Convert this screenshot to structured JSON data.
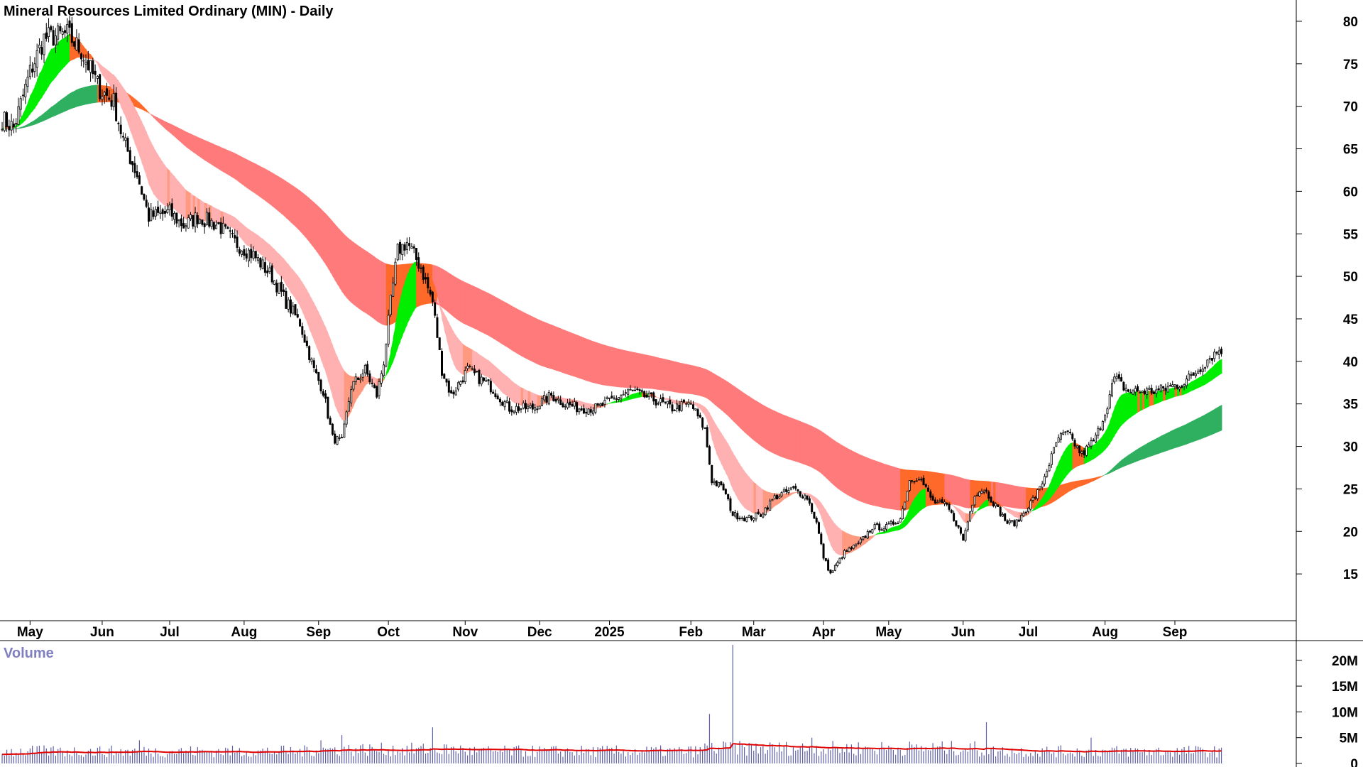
{
  "chart_data": {
    "type": "candlestick",
    "title": "Mineral Resources Limited Ordinary (MIN) - Daily",
    "volume_label": "Volume",
    "price_axis": {
      "ticks": [
        15,
        20,
        25,
        30,
        35,
        40,
        45,
        50,
        55,
        60,
        65,
        70,
        75,
        80
      ],
      "range": [
        10.5,
        81.5
      ]
    },
    "volume_axis": {
      "ticks": [
        0,
        5,
        10,
        15,
        20
      ],
      "tick_labels": [
        "0",
        "5M",
        "10M",
        "15M",
        "20M"
      ],
      "unit": "M",
      "range": [
        0,
        23
      ]
    },
    "x_ticks": [
      {
        "label": "May",
        "day": 12
      },
      {
        "label": "Jun",
        "day": 43
      },
      {
        "label": "Jul",
        "day": 72
      },
      {
        "label": "Aug",
        "day": 104
      },
      {
        "label": "Sep",
        "day": 136
      },
      {
        "label": "Oct",
        "day": 166
      },
      {
        "label": "Nov",
        "day": 199
      },
      {
        "label": "Dec",
        "day": 231
      },
      {
        "label": "2025",
        "day": 261
      },
      {
        "label": "Feb",
        "day": 296
      },
      {
        "label": "Mar",
        "day": 323
      },
      {
        "label": "Apr",
        "day": 353
      },
      {
        "label": "May",
        "day": 381
      },
      {
        "label": "Jun",
        "day": 413
      },
      {
        "label": "Jul",
        "day": 441
      },
      {
        "label": "Aug",
        "day": 474
      },
      {
        "label": "Sep",
        "day": 504
      }
    ],
    "day_range": [
      0,
      540
    ],
    "close_anchors": [
      [
        0,
        68.5
      ],
      [
        5,
        67.5
      ],
      [
        12,
        74
      ],
      [
        18,
        78
      ],
      [
        28,
        78.5
      ],
      [
        34,
        76.5
      ],
      [
        42,
        72
      ],
      [
        48,
        70.5
      ],
      [
        52,
        66
      ],
      [
        58,
        62
      ],
      [
        63,
        57
      ],
      [
        72,
        57.5
      ],
      [
        78,
        56
      ],
      [
        84,
        57
      ],
      [
        93,
        56
      ],
      [
        100,
        54
      ],
      [
        108,
        52.5
      ],
      [
        116,
        50
      ],
      [
        122,
        47
      ],
      [
        128,
        44.5
      ],
      [
        134,
        39
      ],
      [
        138,
        36.5
      ],
      [
        142,
        31
      ],
      [
        146,
        30.5
      ],
      [
        150,
        37
      ],
      [
        156,
        39
      ],
      [
        161,
        36
      ],
      [
        164,
        40
      ],
      [
        167,
        47
      ],
      [
        170,
        53
      ],
      [
        174,
        54
      ],
      [
        180,
        51
      ],
      [
        185,
        47
      ],
      [
        189,
        39
      ],
      [
        193,
        36
      ],
      [
        200,
        39
      ],
      [
        210,
        37
      ],
      [
        218,
        34.5
      ],
      [
        228,
        34.5
      ],
      [
        236,
        36
      ],
      [
        242,
        35
      ],
      [
        248,
        34.5
      ],
      [
        256,
        34.5
      ],
      [
        262,
        35.5
      ],
      [
        270,
        36.5
      ],
      [
        280,
        35.5
      ],
      [
        288,
        34.5
      ],
      [
        296,
        35
      ],
      [
        302,
        32
      ],
      [
        305,
        26
      ],
      [
        310,
        25
      ],
      [
        314,
        22
      ],
      [
        320,
        21.5
      ],
      [
        326,
        22
      ],
      [
        332,
        24
      ],
      [
        340,
        25
      ],
      [
        346,
        24
      ],
      [
        350,
        21
      ],
      [
        353,
        17
      ],
      [
        356,
        15
      ],
      [
        362,
        17.5
      ],
      [
        368,
        18.5
      ],
      [
        374,
        20.5
      ],
      [
        380,
        20.5
      ],
      [
        386,
        21.5
      ],
      [
        390,
        26
      ],
      [
        394,
        26.5
      ],
      [
        400,
        23.5
      ],
      [
        406,
        23
      ],
      [
        410,
        21
      ],
      [
        413,
        19
      ],
      [
        418,
        24.5
      ],
      [
        422,
        25
      ],
      [
        427,
        23
      ],
      [
        432,
        21
      ],
      [
        436,
        21
      ],
      [
        441,
        23
      ],
      [
        446,
        25
      ],
      [
        450,
        28
      ],
      [
        454,
        31
      ],
      [
        458,
        31.5
      ],
      [
        464,
        29
      ],
      [
        470,
        31
      ],
      [
        474,
        34
      ],
      [
        478,
        38
      ],
      [
        484,
        36.5
      ],
      [
        490,
        36.5
      ],
      [
        496,
        36.5
      ],
      [
        502,
        37
      ],
      [
        508,
        37.5
      ],
      [
        514,
        39
      ],
      [
        519,
        40.5
      ],
      [
        524,
        41.5
      ]
    ],
    "ribbons": [
      {
        "name": "short-term",
        "up_color": "#00ee00",
        "down_color": "#ff6a2a",
        "down_faded_color": "#ffb0b0",
        "flat_color": "#ff9a80",
        "fast_ema_days": 10,
        "slow_ema_days": 30
      },
      {
        "name": "long-term",
        "up_color": "#2fb060",
        "down_color": "#ff6a2a",
        "down_faded_color": "#ff7a7a",
        "fast_ema_days": 80,
        "slow_ema_days": 160
      }
    ],
    "volume": {
      "bar_color": "#6060a8",
      "average_color": "#e00000",
      "typical_millions": 2.6,
      "spikes": [
        {
          "day": 59,
          "value": 4.5
        },
        {
          "day": 137,
          "value": 4.5
        },
        {
          "day": 146,
          "value": 5.5
        },
        {
          "day": 185,
          "value": 7
        },
        {
          "day": 304,
          "value": 9.6
        },
        {
          "day": 314,
          "value": 23
        },
        {
          "day": 348,
          "value": 5
        },
        {
          "day": 423,
          "value": 8
        },
        {
          "day": 468,
          "value": 5
        }
      ]
    }
  }
}
